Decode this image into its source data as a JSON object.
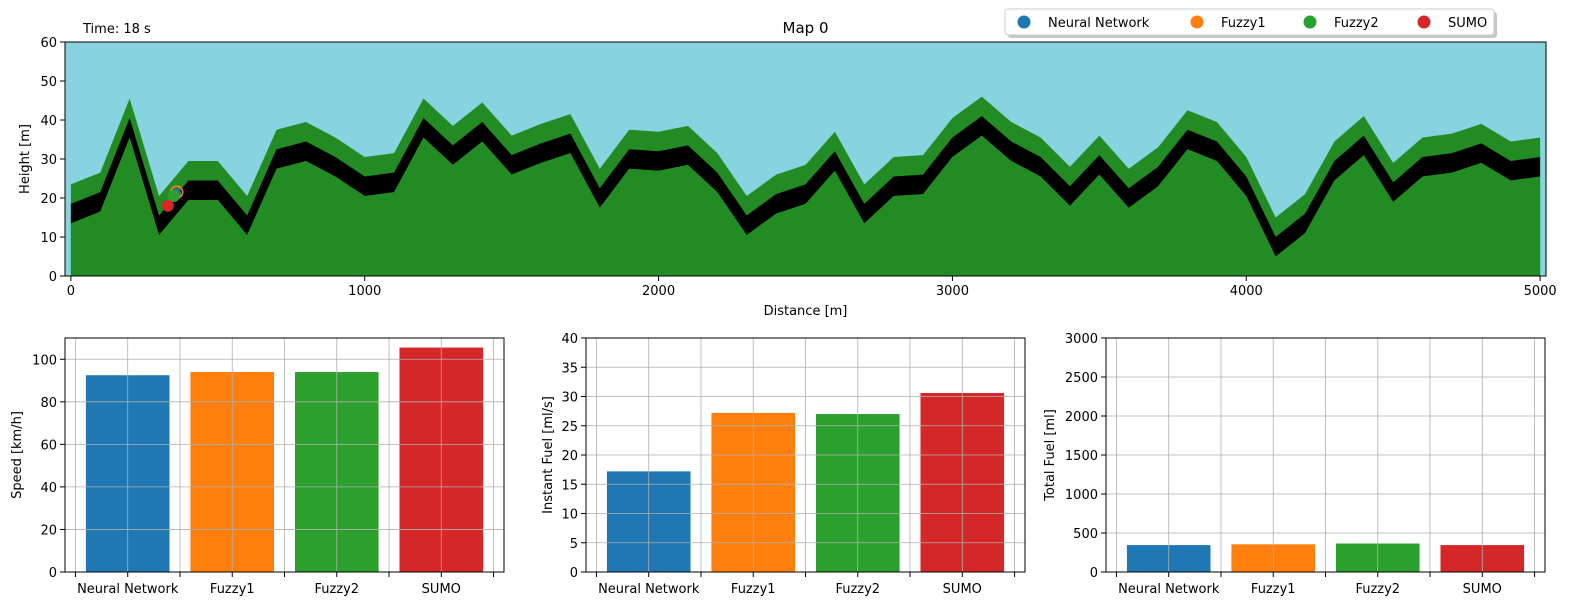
{
  "time_label": "Time: 18 s",
  "colors": {
    "neural_network": "#1f77b4",
    "fuzzy1": "#ff7f0e",
    "fuzzy2": "#2ca02c",
    "sumo": "#d62728",
    "sky": "#87d4e0",
    "terrain": "#238b23",
    "road": "#000000",
    "grid": "#b0b0b0"
  },
  "legend": {
    "placement": "top-right",
    "entries": [
      "Neural Network",
      "Fuzzy1",
      "Fuzzy2",
      "SUMO"
    ]
  },
  "chart_data": [
    {
      "type": "area",
      "title": "Map 0",
      "xlabel": "Distance [m]",
      "ylabel": "Height [m]",
      "xlim": [
        -20,
        5020
      ],
      "ylim": [
        0,
        60
      ],
      "xticks": [
        "0",
        "1000",
        "2000",
        "3000",
        "4000",
        "5000"
      ],
      "yticks": [
        "0",
        "10",
        "20",
        "30",
        "40",
        "50",
        "60"
      ],
      "grid": false,
      "terrain_x": [
        0,
        100,
        200,
        300,
        400,
        500,
        600,
        700,
        800,
        900,
        1000,
        1100,
        1200,
        1300,
        1400,
        1500,
        1600,
        1700,
        1800,
        1900,
        2000,
        2100,
        2200,
        2300,
        2400,
        2500,
        2600,
        2700,
        2800,
        2900,
        3000,
        3100,
        3200,
        3300,
        3400,
        3500,
        3600,
        3700,
        3800,
        3900,
        4000,
        4100,
        4200,
        4300,
        4400,
        4500,
        4600,
        4700,
        4800,
        4900,
        5000
      ],
      "road_height": [
        16,
        19,
        38,
        13,
        22,
        22,
        13,
        30,
        32,
        28,
        23,
        24,
        38,
        31,
        37,
        28.5,
        31.5,
        34,
        20,
        30,
        29.5,
        31,
        24,
        13,
        18.5,
        21,
        29.5,
        16,
        23,
        23.5,
        33,
        38.5,
        32,
        28,
        20.5,
        28.5,
        20,
        25.5,
        35,
        32,
        23,
        7.5,
        13.5,
        27,
        33.5,
        21.5,
        28,
        29,
        31.5,
        27,
        28
      ],
      "road_halfwidth_m": 2.5,
      "terrain_margin_m": 5,
      "vehicles": [
        {
          "name": "Neural Network",
          "x": 355,
          "height": 21
        },
        {
          "name": "Fuzzy1",
          "x": 360,
          "height": 21.5
        },
        {
          "name": "Fuzzy2",
          "x": 350,
          "height": 20.5
        },
        {
          "name": "SUMO",
          "x": 330,
          "height": 18
        }
      ]
    },
    {
      "type": "bar",
      "ylabel": "Speed [km/h]",
      "categories": [
        "Neural Network",
        "Fuzzy1",
        "Fuzzy2",
        "SUMO"
      ],
      "values": [
        92.5,
        94,
        94,
        105.5
      ],
      "ylim": [
        0,
        110
      ],
      "yticks": [
        "0",
        "20",
        "40",
        "60",
        "80",
        "100"
      ],
      "grid": true
    },
    {
      "type": "bar",
      "ylabel": "Instant Fuel [ml/s]",
      "categories": [
        "Neural Network",
        "Fuzzy1",
        "Fuzzy2",
        "SUMO"
      ],
      "values": [
        17.2,
        27.2,
        27,
        30.6
      ],
      "ylim": [
        0,
        40
      ],
      "yticks": [
        "0",
        "5",
        "10",
        "15",
        "20",
        "25",
        "30",
        "35",
        "40"
      ],
      "grid": true
    },
    {
      "type": "bar",
      "ylabel": "Total Fuel [ml]",
      "categories": [
        "Neural Network",
        "Fuzzy1",
        "Fuzzy2",
        "SUMO"
      ],
      "values": [
        345,
        355,
        365,
        345
      ],
      "ylim": [
        0,
        3000
      ],
      "yticks": [
        "0",
        "500",
        "1000",
        "1500",
        "2000",
        "2500",
        "3000"
      ],
      "grid": true
    }
  ]
}
